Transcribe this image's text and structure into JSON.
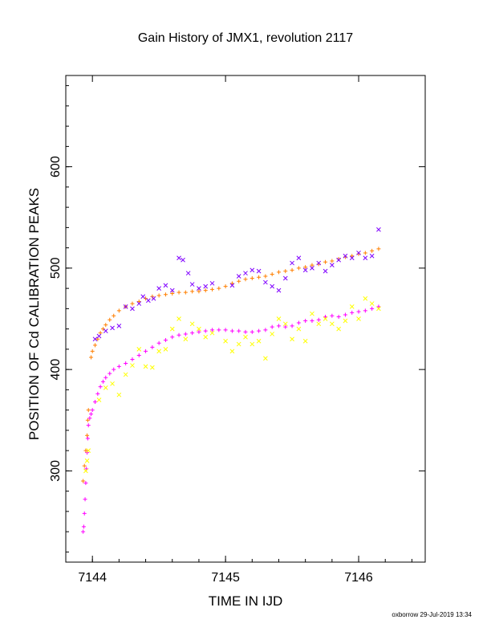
{
  "chart_data": {
    "type": "scatter",
    "title": "Gain History of JMX1, revolution 2117",
    "xlabel": "TIME IN IJD",
    "ylabel": "POSITION OF Cd CALIBRATION PEAKS",
    "xlim": [
      7143.8,
      7146.5
    ],
    "ylim": [
      210,
      690
    ],
    "x_ticks": [
      7144,
      7145,
      7146
    ],
    "y_ticks": [
      300,
      400,
      500,
      600
    ],
    "grid": false,
    "legend": "none",
    "series": [
      {
        "color": "#ff7f00",
        "marker": "+",
        "points": [
          [
            7143.93,
            290
          ],
          [
            7143.94,
            305
          ],
          [
            7143.95,
            320
          ],
          [
            7143.96,
            335
          ],
          [
            7143.965,
            350
          ],
          [
            7143.97,
            360
          ],
          [
            7143.99,
            412
          ],
          [
            7144.0,
            418
          ],
          [
            7144.02,
            424
          ],
          [
            7144.04,
            430
          ],
          [
            7144.06,
            436
          ],
          [
            7144.08,
            440
          ],
          [
            7144.1,
            444
          ],
          [
            7144.13,
            449
          ],
          [
            7144.16,
            453
          ],
          [
            7144.2,
            458
          ],
          [
            7144.25,
            462
          ],
          [
            7144.3,
            465
          ],
          [
            7144.35,
            467
          ],
          [
            7144.4,
            470
          ],
          [
            7144.45,
            472
          ],
          [
            7144.5,
            473
          ],
          [
            7144.55,
            474
          ],
          [
            7144.6,
            475
          ],
          [
            7144.65,
            476
          ],
          [
            7144.7,
            476
          ],
          [
            7144.75,
            477
          ],
          [
            7144.8,
            477
          ],
          [
            7144.85,
            478
          ],
          [
            7144.9,
            479
          ],
          [
            7144.95,
            480
          ],
          [
            7145.0,
            482
          ],
          [
            7145.05,
            485
          ],
          [
            7145.1,
            487
          ],
          [
            7145.15,
            489
          ],
          [
            7145.2,
            490
          ],
          [
            7145.25,
            491
          ],
          [
            7145.3,
            492
          ],
          [
            7145.35,
            494
          ],
          [
            7145.4,
            496
          ],
          [
            7145.45,
            497
          ],
          [
            7145.5,
            498
          ],
          [
            7145.55,
            500
          ],
          [
            7145.6,
            501
          ],
          [
            7145.65,
            503
          ],
          [
            7145.7,
            504
          ],
          [
            7145.75,
            506
          ],
          [
            7145.8,
            507
          ],
          [
            7145.85,
            509
          ],
          [
            7145.9,
            511
          ],
          [
            7145.95,
            512
          ],
          [
            7146.0,
            514
          ],
          [
            7146.05,
            515
          ],
          [
            7146.1,
            517
          ],
          [
            7146.15,
            519
          ]
        ]
      },
      {
        "color": "#ff00ff",
        "marker": "+",
        "points": [
          [
            7143.93,
            240
          ],
          [
            7143.935,
            245
          ],
          [
            7143.94,
            258
          ],
          [
            7143.945,
            272
          ],
          [
            7143.95,
            288
          ],
          [
            7143.955,
            302
          ],
          [
            7143.96,
            318
          ],
          [
            7143.965,
            332
          ],
          [
            7143.97,
            345
          ],
          [
            7143.98,
            352
          ],
          [
            7143.99,
            356
          ],
          [
            7144.0,
            360
          ],
          [
            7144.02,
            368
          ],
          [
            7144.04,
            376
          ],
          [
            7144.06,
            383
          ],
          [
            7144.08,
            388
          ],
          [
            7144.1,
            392
          ],
          [
            7144.13,
            396
          ],
          [
            7144.16,
            400
          ],
          [
            7144.2,
            403
          ],
          [
            7144.25,
            406
          ],
          [
            7144.3,
            410
          ],
          [
            7144.35,
            414
          ],
          [
            7144.4,
            418
          ],
          [
            7144.45,
            422
          ],
          [
            7144.5,
            426
          ],
          [
            7144.55,
            429
          ],
          [
            7144.6,
            432
          ],
          [
            7144.65,
            434
          ],
          [
            7144.7,
            435
          ],
          [
            7144.75,
            436
          ],
          [
            7144.8,
            437
          ],
          [
            7144.85,
            438
          ],
          [
            7144.9,
            439
          ],
          [
            7144.95,
            439
          ],
          [
            7145.0,
            439
          ],
          [
            7145.05,
            438
          ],
          [
            7145.1,
            438
          ],
          [
            7145.15,
            437
          ],
          [
            7145.2,
            437
          ],
          [
            7145.25,
            438
          ],
          [
            7145.3,
            439
          ],
          [
            7145.35,
            442
          ],
          [
            7145.4,
            443
          ],
          [
            7145.45,
            442
          ],
          [
            7145.5,
            443
          ],
          [
            7145.55,
            446
          ],
          [
            7145.6,
            448
          ],
          [
            7145.65,
            448
          ],
          [
            7145.7,
            449
          ],
          [
            7145.75,
            452
          ],
          [
            7145.8,
            453
          ],
          [
            7145.85,
            452
          ],
          [
            7145.9,
            454
          ],
          [
            7145.95,
            456
          ],
          [
            7146.0,
            457
          ],
          [
            7146.05,
            458
          ],
          [
            7146.1,
            460
          ],
          [
            7146.15,
            462
          ]
        ]
      },
      {
        "color": "#8000ff",
        "marker": "x",
        "points": [
          [
            7144.02,
            430
          ],
          [
            7144.05,
            433
          ],
          [
            7144.1,
            438
          ],
          [
            7144.15,
            441
          ],
          [
            7144.2,
            443
          ],
          [
            7144.25,
            462
          ],
          [
            7144.3,
            460
          ],
          [
            7144.35,
            465
          ],
          [
            7144.38,
            472
          ],
          [
            7144.42,
            468
          ],
          [
            7144.46,
            470
          ],
          [
            7144.5,
            480
          ],
          [
            7144.55,
            483
          ],
          [
            7144.6,
            478
          ],
          [
            7144.65,
            510
          ],
          [
            7144.68,
            508
          ],
          [
            7144.72,
            495
          ],
          [
            7144.75,
            484
          ],
          [
            7144.8,
            480
          ],
          [
            7144.85,
            482
          ],
          [
            7144.9,
            485
          ],
          [
            7145.05,
            483
          ],
          [
            7145.1,
            492
          ],
          [
            7145.15,
            495
          ],
          [
            7145.2,
            498
          ],
          [
            7145.25,
            497
          ],
          [
            7145.3,
            486
          ],
          [
            7145.35,
            482
          ],
          [
            7145.4,
            478
          ],
          [
            7145.45,
            490
          ],
          [
            7145.5,
            505
          ],
          [
            7145.55,
            510
          ],
          [
            7145.6,
            498
          ],
          [
            7145.65,
            500
          ],
          [
            7145.7,
            505
          ],
          [
            7145.75,
            497
          ],
          [
            7145.8,
            503
          ],
          [
            7145.85,
            508
          ],
          [
            7145.9,
            512
          ],
          [
            7145.95,
            510
          ],
          [
            7146.0,
            515
          ],
          [
            7146.05,
            510
          ],
          [
            7146.1,
            512
          ],
          [
            7146.15,
            538
          ]
        ]
      },
      {
        "color": "#ffff00",
        "marker": "x",
        "points": [
          [
            7143.95,
            300
          ],
          [
            7143.96,
            310
          ],
          [
            7143.97,
            320
          ],
          [
            7144.05,
            370
          ],
          [
            7144.1,
            382
          ],
          [
            7144.15,
            386
          ],
          [
            7144.2,
            375
          ],
          [
            7144.25,
            395
          ],
          [
            7144.3,
            404
          ],
          [
            7144.35,
            420
          ],
          [
            7144.4,
            403
          ],
          [
            7144.45,
            402
          ],
          [
            7144.5,
            418
          ],
          [
            7144.55,
            420
          ],
          [
            7144.6,
            440
          ],
          [
            7144.65,
            450
          ],
          [
            7144.7,
            430
          ],
          [
            7144.75,
            445
          ],
          [
            7144.8,
            440
          ],
          [
            7144.85,
            432
          ],
          [
            7144.9,
            436
          ],
          [
            7145.0,
            428
          ],
          [
            7145.05,
            418
          ],
          [
            7145.1,
            425
          ],
          [
            7145.15,
            432
          ],
          [
            7145.2,
            425
          ],
          [
            7145.25,
            428
          ],
          [
            7145.3,
            411
          ],
          [
            7145.35,
            435
          ],
          [
            7145.4,
            450
          ],
          [
            7145.45,
            445
          ],
          [
            7145.5,
            430
          ],
          [
            7145.55,
            440
          ],
          [
            7145.6,
            428
          ],
          [
            7145.65,
            455
          ],
          [
            7145.7,
            445
          ],
          [
            7145.75,
            450
          ],
          [
            7145.8,
            445
          ],
          [
            7145.85,
            440
          ],
          [
            7145.9,
            448
          ],
          [
            7145.95,
            462
          ],
          [
            7146.0,
            450
          ],
          [
            7146.05,
            470
          ],
          [
            7146.1,
            465
          ],
          [
            7146.15,
            460
          ]
        ]
      }
    ]
  },
  "footer": "oxborrow 29-Jul-2019 13:34"
}
